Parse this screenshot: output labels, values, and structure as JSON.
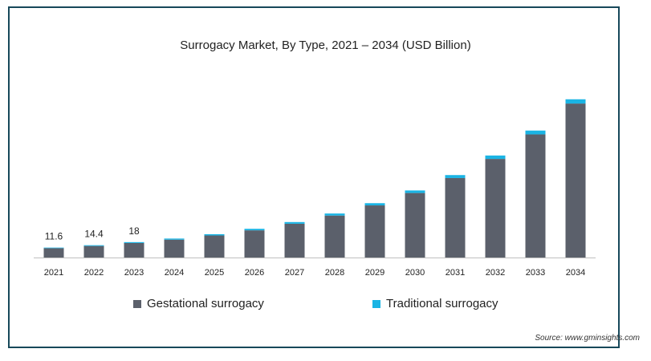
{
  "chart_data": {
    "type": "bar",
    "stacked": true,
    "title": "Surrogacy Market, By Type, 2021 – 2034 (USD Billion)",
    "categories": [
      "2021",
      "2022",
      "2023",
      "2024",
      "2025",
      "2026",
      "2027",
      "2028",
      "2029",
      "2030",
      "2031",
      "2032",
      "2033",
      "2034"
    ],
    "series": [
      {
        "name": "Gestational surrogacy",
        "color": "#5b606b",
        "values": [
          10.9,
          13.5,
          16.9,
          20.9,
          25.8,
          31.8,
          39.5,
          49.1,
          61.0,
          75.5,
          93.0,
          115.4,
          144.1,
          180.2
        ]
      },
      {
        "name": "Traditional surrogacy",
        "color": "#1ab4e4",
        "values": [
          0.7,
          0.9,
          1.1,
          1.3,
          1.5,
          1.8,
          2.0,
          2.4,
          2.6,
          3.0,
          3.5,
          4.0,
          4.5,
          5.0
        ]
      }
    ],
    "data_labels": [
      "11.6",
      "14.4",
      "18"
    ],
    "ylim": [
      0,
      200
    ],
    "grid": false,
    "legend_position": "bottom"
  },
  "source": "Source: www.gminsights.com"
}
